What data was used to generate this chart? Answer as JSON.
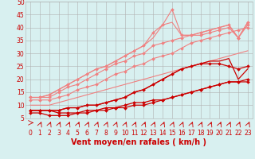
{
  "xlabel": "Vent moyen/en rafales ( km/h )",
  "bg_color": "#d8f0f0",
  "grid_color": "#b0b0b0",
  "xlim": [
    -0.5,
    23.5
  ],
  "ylim": [
    5,
    50
  ],
  "yticks": [
    5,
    10,
    15,
    20,
    25,
    30,
    35,
    40,
    45,
    50
  ],
  "xticks": [
    0,
    1,
    2,
    3,
    4,
    5,
    6,
    7,
    8,
    9,
    10,
    11,
    12,
    13,
    14,
    15,
    16,
    17,
    18,
    19,
    20,
    21,
    22,
    23
  ],
  "lines": [
    {
      "x": [
        0,
        1,
        2,
        3,
        4,
        5,
        6,
        7,
        8,
        9,
        10,
        11,
        12,
        13,
        14,
        15,
        16,
        17,
        18,
        19,
        20,
        21,
        22,
        23
      ],
      "y": [
        10,
        10,
        10,
        11,
        12,
        13,
        14,
        15,
        16,
        17,
        18,
        19,
        20,
        21,
        22,
        23,
        24,
        25,
        26,
        27,
        28,
        29,
        30,
        31
      ],
      "color": "#f08080",
      "lw": 0.8,
      "marker": null,
      "ms": 0
    },
    {
      "x": [
        0,
        1,
        2,
        3,
        4,
        5,
        6,
        7,
        8,
        9,
        10,
        11,
        12,
        13,
        14,
        15,
        16,
        17,
        18,
        19,
        20,
        21,
        22,
        23
      ],
      "y": [
        12,
        12,
        12,
        13,
        14,
        16,
        17,
        18,
        20,
        22,
        23,
        25,
        26,
        28,
        29,
        30,
        32,
        34,
        35,
        36,
        37,
        38,
        39,
        40
      ],
      "color": "#f08080",
      "lw": 0.8,
      "marker": "D",
      "ms": 2.0
    },
    {
      "x": [
        0,
        1,
        2,
        3,
        4,
        5,
        6,
        7,
        8,
        9,
        10,
        11,
        12,
        13,
        14,
        15,
        16,
        17,
        18,
        19,
        20,
        21,
        22,
        23
      ],
      "y": [
        13,
        13,
        13,
        15,
        17,
        18,
        20,
        22,
        24,
        26,
        27,
        29,
        30,
        33,
        34,
        35,
        36,
        37,
        37,
        38,
        39,
        40,
        36,
        41
      ],
      "color": "#f08080",
      "lw": 0.8,
      "marker": "D",
      "ms": 2.0
    },
    {
      "x": [
        0,
        1,
        2,
        3,
        4,
        5,
        6,
        7,
        8,
        9,
        10,
        11,
        12,
        13,
        14,
        15,
        16,
        17,
        18,
        19,
        20,
        21,
        22,
        23
      ],
      "y": [
        13,
        13,
        14,
        16,
        18,
        20,
        22,
        24,
        25,
        27,
        29,
        31,
        33,
        38,
        41,
        47,
        37,
        37,
        38,
        39,
        40,
        41,
        36,
        42
      ],
      "color": "#f08080",
      "lw": 0.8,
      "marker": "D",
      "ms": 2.0
    },
    {
      "x": [
        0,
        1,
        2,
        3,
        4,
        5,
        6,
        7,
        8,
        9,
        10,
        11,
        12,
        13,
        14,
        15,
        16,
        17,
        18,
        19,
        20,
        21,
        22,
        23
      ],
      "y": [
        13,
        13,
        14,
        16,
        18,
        20,
        22,
        24,
        25,
        27,
        29,
        31,
        33,
        36,
        41,
        42,
        37,
        37,
        38,
        39,
        40,
        41,
        36,
        42
      ],
      "color": "#f08080",
      "lw": 0.8,
      "marker": null,
      "ms": 0
    },
    {
      "x": [
        0,
        1,
        2,
        3,
        4,
        5,
        6,
        7,
        8,
        9,
        10,
        11,
        12,
        13,
        14,
        15,
        16,
        17,
        18,
        19,
        20,
        21,
        22,
        23
      ],
      "y": [
        8,
        8,
        8,
        7,
        7,
        7,
        8,
        8,
        9,
        9,
        10,
        11,
        11,
        12,
        12,
        13,
        14,
        15,
        16,
        17,
        18,
        19,
        19,
        20
      ],
      "color": "#cc0000",
      "lw": 0.9,
      "marker": "D",
      "ms": 2.0
    },
    {
      "x": [
        0,
        1,
        2,
        3,
        4,
        5,
        6,
        7,
        8,
        9,
        10,
        11,
        12,
        13,
        14,
        15,
        16,
        17,
        18,
        19,
        20,
        21,
        22,
        23
      ],
      "y": [
        7,
        7,
        6,
        6,
        6,
        7,
        7,
        8,
        8,
        9,
        9,
        10,
        10,
        11,
        12,
        13,
        14,
        15,
        16,
        17,
        18,
        19,
        19,
        19
      ],
      "color": "#cc0000",
      "lw": 0.9,
      "marker": "D",
      "ms": 2.0
    },
    {
      "x": [
        0,
        1,
        2,
        3,
        4,
        5,
        6,
        7,
        8,
        9,
        10,
        11,
        12,
        13,
        14,
        15,
        16,
        17,
        18,
        19,
        20,
        21,
        22,
        23
      ],
      "y": [
        8,
        8,
        8,
        8,
        9,
        9,
        10,
        10,
        11,
        12,
        13,
        15,
        16,
        18,
        20,
        22,
        24,
        25,
        26,
        26,
        26,
        25,
        24,
        25
      ],
      "color": "#cc0000",
      "lw": 0.9,
      "marker": "D",
      "ms": 2.0
    },
    {
      "x": [
        0,
        1,
        2,
        3,
        4,
        5,
        6,
        7,
        8,
        9,
        10,
        11,
        12,
        13,
        14,
        15,
        16,
        17,
        18,
        19,
        20,
        21,
        22,
        23
      ],
      "y": [
        8,
        8,
        8,
        8,
        9,
        9,
        10,
        10,
        11,
        12,
        13,
        15,
        16,
        18,
        20,
        22,
        24,
        25,
        26,
        27,
        27,
        28,
        20,
        24
      ],
      "color": "#cc0000",
      "lw": 0.9,
      "marker": null,
      "ms": 0
    }
  ],
  "xlabel_color": "#cc0000",
  "xlabel_fontsize": 7,
  "tick_color": "#cc0000",
  "tick_fontsize": 5.5,
  "arrow_color": "#cc0000"
}
